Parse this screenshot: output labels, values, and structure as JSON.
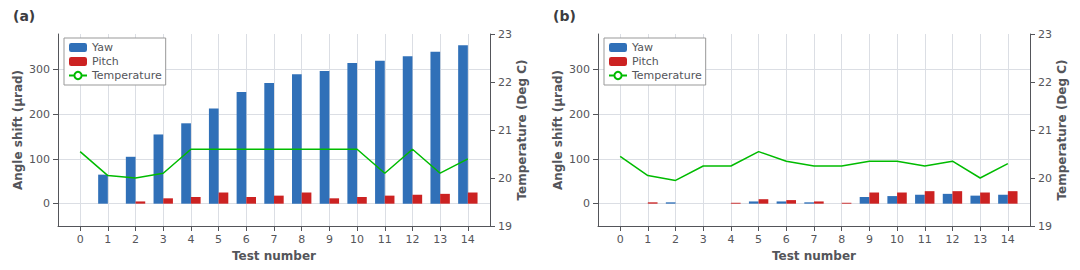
{
  "chart_data": [
    {
      "type": "bar",
      "title": "(a)",
      "x": [
        0,
        1,
        2,
        3,
        4,
        5,
        6,
        7,
        8,
        9,
        10,
        11,
        12,
        13,
        14
      ],
      "series": [
        {
          "name": "Yaw",
          "color": "#3070b8",
          "values": [
            0,
            65,
            105,
            155,
            180,
            213,
            250,
            270,
            290,
            297,
            315,
            320,
            330,
            340,
            355
          ]
        },
        {
          "name": "Pitch",
          "color": "#cc2222",
          "values": [
            0,
            0,
            5,
            12,
            15,
            25,
            15,
            18,
            25,
            12,
            15,
            18,
            20,
            22,
            25
          ]
        },
        {
          "name": "Temperature",
          "type": "line",
          "axis": "y2",
          "color": "#00bb00",
          "values": [
            20.55,
            20.05,
            20.0,
            20.1,
            20.6,
            20.6,
            20.6,
            20.6,
            20.6,
            20.6,
            20.6,
            20.1,
            20.6,
            20.1,
            20.4
          ]
        }
      ],
      "xlabel": "Test number",
      "ylabel": "Angle shift (μrad)",
      "y2label": "Temperature (Deg C)",
      "xlim": [
        -0.8,
        14.8
      ],
      "xticks": [
        0,
        1,
        2,
        3,
        4,
        5,
        6,
        7,
        8,
        9,
        10,
        11,
        12,
        13,
        14
      ],
      "ylim": [
        -50,
        380
      ],
      "yticks": [
        0,
        100,
        200,
        300
      ],
      "y2lim": [
        19,
        23
      ],
      "y2ticks": [
        19,
        20,
        21,
        22,
        23
      ],
      "grid": true,
      "legend": "upper left"
    },
    {
      "type": "bar",
      "title": "(b)",
      "x": [
        0,
        1,
        2,
        3,
        4,
        5,
        6,
        7,
        8,
        9,
        10,
        11,
        12,
        13,
        14
      ],
      "series": [
        {
          "name": "Yaw",
          "color": "#3070b8",
          "values": [
            0,
            0,
            3,
            0,
            0,
            5,
            5,
            3,
            0,
            15,
            17,
            20,
            22,
            18,
            20
          ]
        },
        {
          "name": "Pitch",
          "color": "#cc2222",
          "values": [
            0,
            3,
            0,
            0,
            2,
            10,
            8,
            5,
            2,
            25,
            25,
            28,
            28,
            25,
            28
          ]
        },
        {
          "name": "Temperature",
          "type": "line",
          "axis": "y2",
          "color": "#00bb00",
          "values": [
            20.45,
            20.05,
            19.95,
            20.25,
            20.25,
            20.55,
            20.35,
            20.25,
            20.25,
            20.35,
            20.35,
            20.25,
            20.35,
            20.0,
            20.3
          ]
        }
      ],
      "xlabel": "Test number",
      "ylabel": "Angle shift (μrad)",
      "y2label": "Temperature (Deg C)",
      "xlim": [
        -0.8,
        14.8
      ],
      "xticks": [
        0,
        1,
        2,
        3,
        4,
        5,
        6,
        7,
        8,
        9,
        10,
        11,
        12,
        13,
        14
      ],
      "ylim": [
        -50,
        380
      ],
      "yticks": [
        0,
        100,
        200,
        300
      ],
      "y2lim": [
        19,
        23
      ],
      "y2ticks": [
        19,
        20,
        21,
        22,
        23
      ],
      "grid": true,
      "legend": "upper left"
    }
  ]
}
